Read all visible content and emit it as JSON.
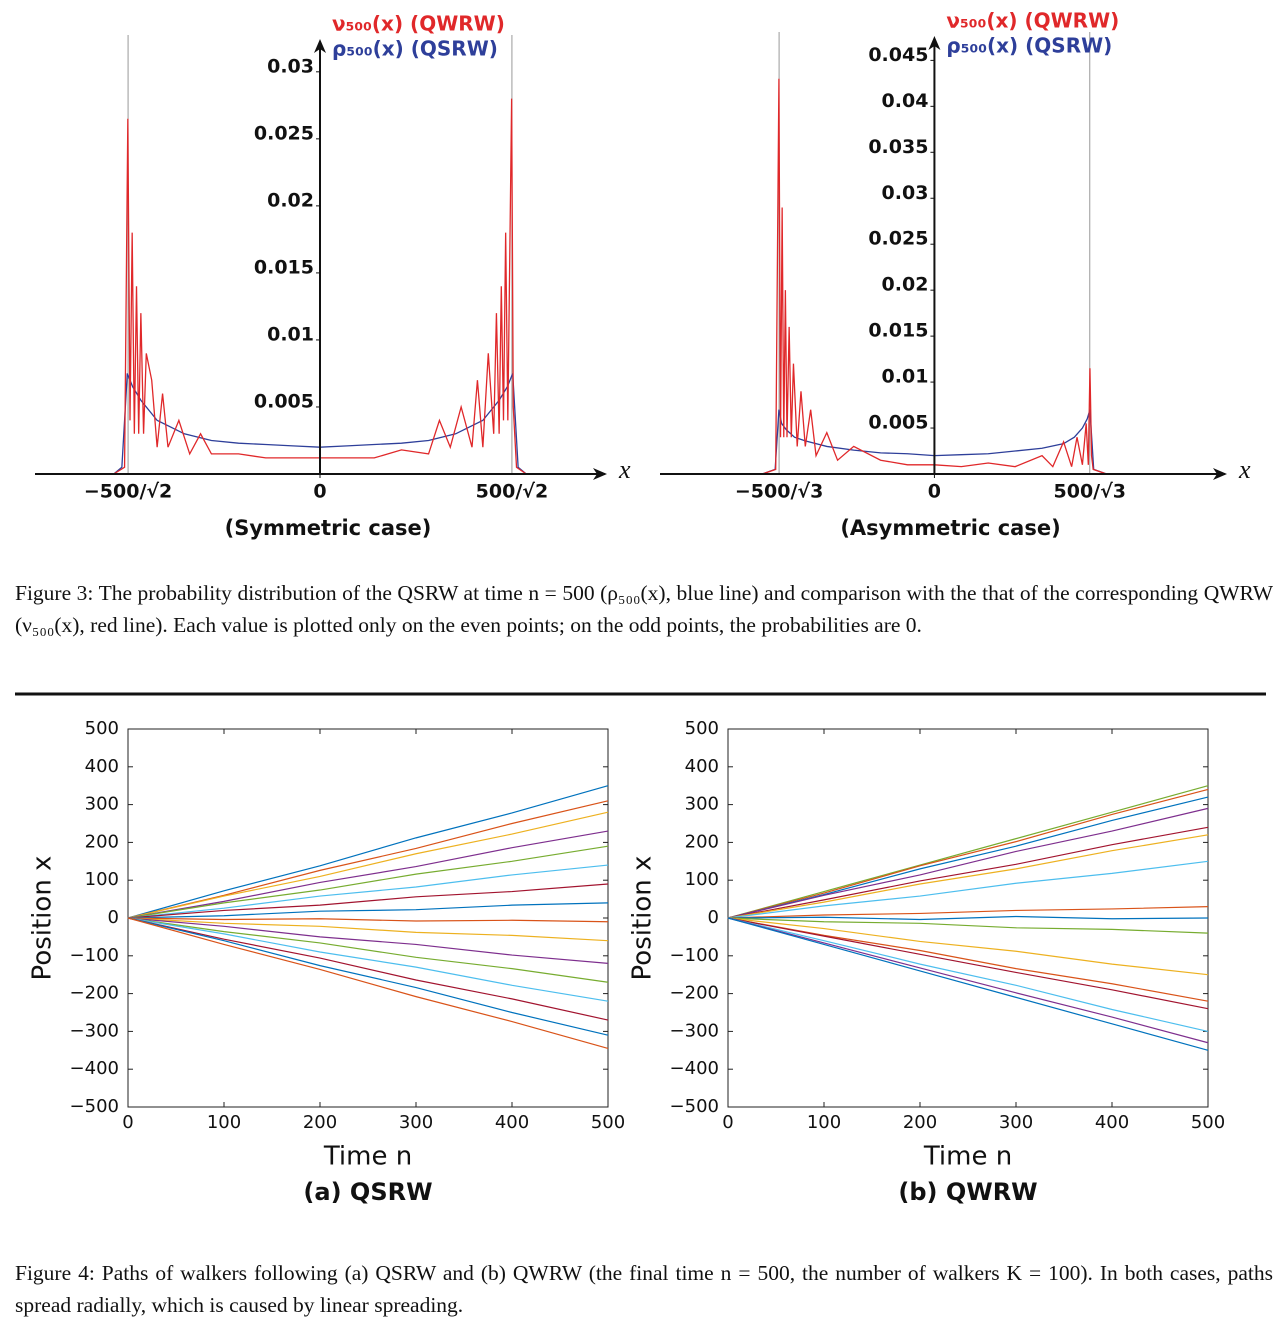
{
  "chart_data": [
    {
      "type": "line",
      "frame": false,
      "title": "(Symmetric case)",
      "xlabel": "x",
      "xlim": [
        -525,
        525
      ],
      "xticks": [
        {
          "value": -353.55,
          "label": "−500/√2"
        },
        0,
        {
          "value": 353.55,
          "label": "500/√2"
        }
      ],
      "ylim": [
        0,
        0.032
      ],
      "yticks": [
        0.005,
        0.01,
        0.015,
        0.02,
        0.025,
        0.03
      ],
      "series": [
        {
          "name": "ν₅₀₀(x) (QWRW)",
          "color": "#e0282a",
          "x": [
            -380,
            -360,
            -354,
            -350,
            -346,
            -342,
            -338,
            -334,
            -330,
            -325,
            -320,
            -310,
            -300,
            -290,
            -280,
            -260,
            -240,
            -220,
            -200,
            -150,
            -100,
            -50,
            0,
            50,
            100,
            150,
            200,
            220,
            240,
            260,
            280,
            290,
            300,
            310,
            320,
            325,
            330,
            334,
            338,
            342,
            346,
            353,
            356,
            362,
            380
          ],
          "values": [
            0,
            0.0005,
            0.0265,
            0.004,
            0.018,
            0.003,
            0.014,
            0.003,
            0.012,
            0.003,
            0.009,
            0.007,
            0.002,
            0.006,
            0.002,
            0.004,
            0.0015,
            0.003,
            0.0015,
            0.0015,
            0.0012,
            0.0012,
            0.0012,
            0.0012,
            0.0012,
            0.0018,
            0.0015,
            0.004,
            0.002,
            0.005,
            0.002,
            0.007,
            0.002,
            0.009,
            0.003,
            0.012,
            0.003,
            0.014,
            0.004,
            0.018,
            0.004,
            0.028,
            0.005,
            0.0005,
            0
          ]
        },
        {
          "name": "ρ₅₀₀(x) (QSRW)",
          "color": "#2e3f9a",
          "x": [
            -380,
            -365,
            -355,
            -345,
            -330,
            -300,
            -250,
            -200,
            -150,
            -100,
            -50,
            0,
            50,
            100,
            150,
            200,
            250,
            300,
            330,
            345,
            355,
            365,
            380
          ],
          "values": [
            0,
            0.0005,
            0.0075,
            0.0065,
            0.0055,
            0.004,
            0.003,
            0.0025,
            0.0023,
            0.0022,
            0.0021,
            0.002,
            0.0021,
            0.0022,
            0.0023,
            0.0025,
            0.003,
            0.004,
            0.0055,
            0.0065,
            0.0075,
            0.0005,
            0
          ]
        }
      ]
    },
    {
      "type": "line",
      "frame": false,
      "title": "(Asymmetric case)",
      "xlabel": "x",
      "xlim": [
        -510,
        540
      ],
      "xticks": [
        {
          "value": -288.68,
          "label": "−500/√3"
        },
        0,
        {
          "value": 288.68,
          "label": "500/√3"
        }
      ],
      "ylim": [
        0,
        0.047
      ],
      "yticks": [
        0.005,
        0.01,
        0.015,
        0.02,
        0.025,
        0.03,
        0.035,
        0.04,
        0.045
      ],
      "series": [
        {
          "name": "ν₅₀₀(x) (QWRW)",
          "color": "#e0282a",
          "x": [
            -320,
            -295,
            -289,
            -286,
            -283,
            -280,
            -277,
            -274,
            -270,
            -266,
            -262,
            -255,
            -248,
            -240,
            -230,
            -220,
            -200,
            -180,
            -150,
            -100,
            -50,
            0,
            50,
            100,
            150,
            200,
            220,
            240,
            255,
            265,
            275,
            282,
            286,
            289,
            292,
            295,
            320
          ],
          "values": [
            0,
            0.0005,
            0.043,
            0.004,
            0.029,
            0.004,
            0.02,
            0.004,
            0.016,
            0.004,
            0.012,
            0.003,
            0.009,
            0.003,
            0.007,
            0.002,
            0.0045,
            0.0015,
            0.003,
            0.0015,
            0.001,
            0.001,
            0.0008,
            0.0012,
            0.0008,
            0.002,
            0.0008,
            0.0035,
            0.0008,
            0.004,
            0.001,
            0.0055,
            0.001,
            0.0115,
            0.002,
            0.0005,
            0
          ]
        },
        {
          "name": "ρ₅₀₀(x) (QSRW)",
          "color": "#2e3f9a",
          "x": [
            -320,
            -296,
            -289,
            -284,
            -275,
            -260,
            -240,
            -200,
            -150,
            -100,
            -50,
            0,
            50,
            100,
            150,
            200,
            240,
            260,
            275,
            284,
            289,
            296,
            320
          ],
          "values": [
            0,
            0.0005,
            0.007,
            0.0055,
            0.0048,
            0.004,
            0.0036,
            0.003,
            0.0026,
            0.0023,
            0.0022,
            0.002,
            0.0021,
            0.0022,
            0.0025,
            0.0028,
            0.0033,
            0.004,
            0.005,
            0.006,
            0.007,
            0.0005,
            0
          ]
        }
      ]
    },
    {
      "type": "line",
      "frame": true,
      "title": "(a)  QSRW",
      "xlabel": "Time n",
      "ylabel": "Position x",
      "x": [
        0,
        100,
        200,
        300,
        400,
        500
      ],
      "xlim": [
        0,
        500
      ],
      "xticks": [
        0,
        100,
        200,
        300,
        400,
        500
      ],
      "ylim": [
        -500,
        500
      ],
      "yticks": [
        {
          "value": -500,
          "label": "−500"
        },
        {
          "value": -400,
          "label": "−400"
        },
        {
          "value": -300,
          "label": "−300"
        },
        {
          "value": -200,
          "label": "−200"
        },
        {
          "value": -100,
          "label": "−100"
        },
        0,
        100,
        200,
        300,
        400,
        500
      ],
      "series": [
        {
          "color": "#0072bd",
          "values": [
            0,
            72,
            138,
            212,
            278,
            350
          ]
        },
        {
          "color": "#d95319",
          "values": [
            0,
            60,
            126,
            184,
            250,
            310
          ]
        },
        {
          "color": "#edb120",
          "values": [
            0,
            58,
            110,
            170,
            222,
            280
          ]
        },
        {
          "color": "#7e2f8e",
          "values": [
            0,
            44,
            94,
            136,
            186,
            230
          ]
        },
        {
          "color": "#77ac30",
          "values": [
            0,
            40,
            74,
            116,
            150,
            190
          ]
        },
        {
          "color": "#4dbeee",
          "values": [
            0,
            26,
            58,
            82,
            114,
            140
          ]
        },
        {
          "color": "#a2142f",
          "values": [
            0,
            20,
            34,
            56,
            70,
            90
          ]
        },
        {
          "color": "#0072bd",
          "values": [
            0,
            6,
            18,
            22,
            34,
            40
          ]
        },
        {
          "color": "#d95319",
          "values": [
            0,
            -4,
            -2,
            -8,
            -6,
            -10
          ]
        },
        {
          "color": "#edb120",
          "values": [
            0,
            -14,
            -22,
            -38,
            -46,
            -60
          ]
        },
        {
          "color": "#7e2f8e",
          "values": [
            0,
            -22,
            -50,
            -70,
            -98,
            -120
          ]
        },
        {
          "color": "#77ac30",
          "values": [
            0,
            -36,
            -66,
            -104,
            -134,
            -170
          ]
        },
        {
          "color": "#4dbeee",
          "values": [
            0,
            -42,
            -90,
            -130,
            -178,
            -220
          ]
        },
        {
          "color": "#a2142f",
          "values": [
            0,
            -56,
            -106,
            -164,
            -214,
            -270
          ]
        },
        {
          "color": "#0072bd",
          "values": [
            0,
            -60,
            -126,
            -184,
            -250,
            -310
          ]
        },
        {
          "color": "#d95319",
          "values": [
            0,
            -70,
            -136,
            -208,
            -274,
            -345
          ]
        }
      ]
    },
    {
      "type": "line",
      "frame": true,
      "title": "(b)  QWRW",
      "xlabel": "Time n",
      "ylabel": "Position x",
      "x": [
        0,
        100,
        200,
        300,
        400,
        500
      ],
      "xlim": [
        0,
        500
      ],
      "xticks": [
        0,
        100,
        200,
        300,
        400,
        500
      ],
      "ylim": [
        -500,
        500
      ],
      "yticks": [
        {
          "value": -500,
          "label": "−500"
        },
        {
          "value": -400,
          "label": "−400"
        },
        {
          "value": -300,
          "label": "−300"
        },
        {
          "value": -200,
          "label": "−200"
        },
        {
          "value": -100,
          "label": "−100"
        },
        0,
        100,
        200,
        300,
        400,
        500
      ],
      "series": [
        {
          "color": "#77ac30",
          "values": [
            0,
            70,
            140,
            210,
            280,
            350
          ]
        },
        {
          "color": "#d95319",
          "values": [
            0,
            66,
            138,
            202,
            274,
            340
          ]
        },
        {
          "color": "#0072bd",
          "values": [
            0,
            62,
            130,
            190,
            258,
            320
          ]
        },
        {
          "color": "#7e2f8e",
          "values": [
            0,
            60,
            114,
            176,
            230,
            290
          ]
        },
        {
          "color": "#a2142f",
          "values": [
            0,
            48,
            98,
            142,
            194,
            240
          ]
        },
        {
          "color": "#edb120",
          "values": [
            0,
            42,
            90,
            130,
            178,
            220
          ]
        },
        {
          "color": "#4dbeee",
          "values": [
            0,
            32,
            58,
            92,
            118,
            150
          ]
        },
        {
          "color": "#d95319",
          "values": [
            0,
            8,
            12,
            20,
            24,
            30
          ]
        },
        {
          "color": "#0072bd",
          "values": [
            0,
            2,
            -4,
            4,
            -2,
            0
          ]
        },
        {
          "color": "#77ac30",
          "values": [
            0,
            -10,
            -14,
            -26,
            -30,
            -40
          ]
        },
        {
          "color": "#edb120",
          "values": [
            0,
            -28,
            -62,
            -88,
            -122,
            -150
          ]
        },
        {
          "color": "#d95319",
          "values": [
            0,
            -46,
            -86,
            -134,
            -174,
            -220
          ]
        },
        {
          "color": "#a2142f",
          "values": [
            0,
            -48,
            -96,
            -144,
            -190,
            -240
          ]
        },
        {
          "color": "#4dbeee",
          "values": [
            0,
            -60,
            -122,
            -178,
            -242,
            -300
          ]
        },
        {
          "color": "#7e2f8e",
          "values": [
            0,
            -66,
            -132,
            -198,
            -262,
            -330
          ]
        },
        {
          "color": "#0072bd",
          "values": [
            0,
            -70,
            -140,
            -210,
            -280,
            -350
          ]
        }
      ]
    }
  ],
  "captions": [
    "Figure 3: The probability distribution of the QSRW at time n = 500 (ρ₅₀₀(x), blue line) and comparison with the that of the corresponding QWRW (ν₅₀₀(x), red line). Each value is plotted only on the even points; on the odd points, the probabilities are 0.",
    "Figure 4: Paths of walkers following (a) QSRW and (b) QWRW (the final time n = 500, the number of walkers K = 100). In both cases, paths spread radially, which is caused by linear spreading."
  ]
}
